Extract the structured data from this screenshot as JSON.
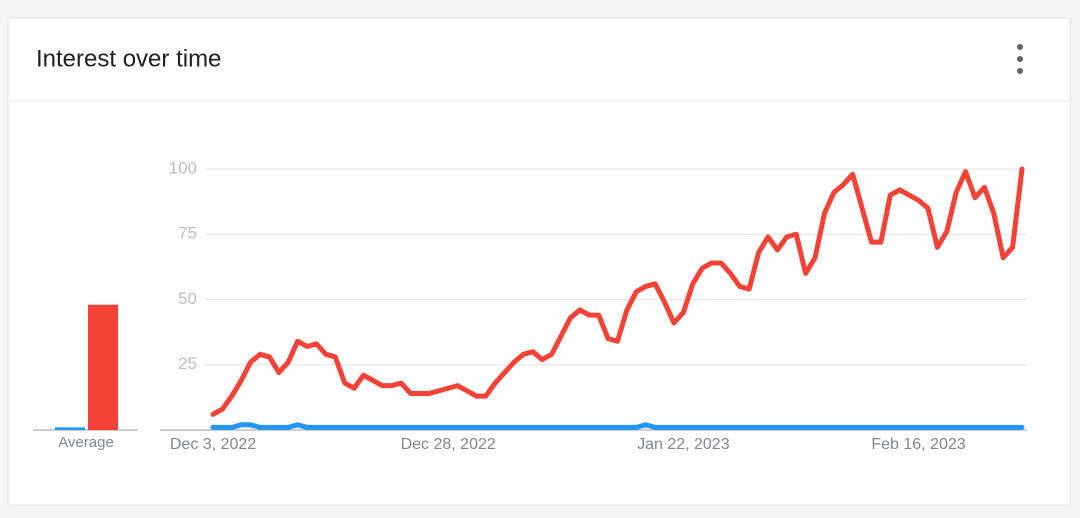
{
  "header": {
    "title": "Interest over time"
  },
  "chart_data": [
    {
      "type": "bar",
      "categories": [
        "Average"
      ],
      "ylim": [
        0,
        100
      ],
      "series": [
        {
          "color": "#2196f3",
          "values": [
            1
          ]
        },
        {
          "color": "#f44336",
          "values": [
            48
          ]
        }
      ]
    },
    {
      "type": "line",
      "ylim": [
        0,
        100
      ],
      "yticks": [
        25,
        50,
        75,
        100
      ],
      "grid": true,
      "categories": [
        "Dec 3, 2022",
        null,
        null,
        null,
        null,
        null,
        null,
        null,
        null,
        null,
        null,
        null,
        null,
        null,
        null,
        null,
        null,
        null,
        null,
        null,
        null,
        null,
        null,
        null,
        null,
        "Dec 28, 2022",
        null,
        null,
        null,
        null,
        null,
        null,
        null,
        null,
        null,
        null,
        null,
        null,
        null,
        null,
        null,
        null,
        null,
        null,
        null,
        null,
        null,
        null,
        null,
        null,
        "Jan 22, 2023",
        null,
        null,
        null,
        null,
        null,
        null,
        null,
        null,
        null,
        null,
        null,
        null,
        null,
        null,
        null,
        null,
        null,
        null,
        null,
        null,
        null,
        null,
        null,
        null,
        "Feb 16, 2023",
        null,
        null,
        null,
        null,
        null,
        null,
        null,
        null,
        null,
        null,
        null
      ],
      "series": [
        {
          "color": "#2196f3",
          "values": [
            1,
            1,
            1,
            2,
            2,
            1,
            1,
            1,
            1,
            2,
            1,
            1,
            1,
            1,
            1,
            1,
            1,
            1,
            1,
            1,
            1,
            1,
            1,
            1,
            1,
            1,
            1,
            1,
            1,
            1,
            1,
            1,
            1,
            1,
            1,
            1,
            1,
            1,
            1,
            1,
            1,
            1,
            1,
            1,
            1,
            1,
            2,
            1,
            1,
            1,
            1,
            1,
            1,
            1,
            1,
            1,
            1,
            1,
            1,
            1,
            1,
            1,
            1,
            1,
            1,
            1,
            1,
            1,
            1,
            1,
            1,
            1,
            1,
            1,
            1,
            1,
            1,
            1,
            1,
            1,
            1,
            1,
            1,
            1,
            1,
            1,
            1
          ]
        },
        {
          "color": "#f44336",
          "values": [
            6,
            8,
            13,
            19,
            26,
            29,
            28,
            22,
            26,
            34,
            32,
            33,
            29,
            28,
            18,
            16,
            21,
            19,
            17,
            17,
            18,
            14,
            14,
            14,
            15,
            16,
            17,
            15,
            13,
            13,
            18,
            22,
            26,
            29,
            30,
            27,
            29,
            36,
            43,
            46,
            44,
            44,
            35,
            34,
            46,
            53,
            55,
            56,
            49,
            41,
            45,
            56,
            62,
            64,
            64,
            60,
            55,
            54,
            68,
            74,
            69,
            74,
            75,
            60,
            66,
            83,
            91,
            94,
            98,
            85,
            72,
            72,
            90,
            92,
            90,
            88,
            85,
            70,
            76,
            91,
            99,
            89,
            93,
            83,
            66,
            70,
            100
          ]
        }
      ]
    }
  ]
}
